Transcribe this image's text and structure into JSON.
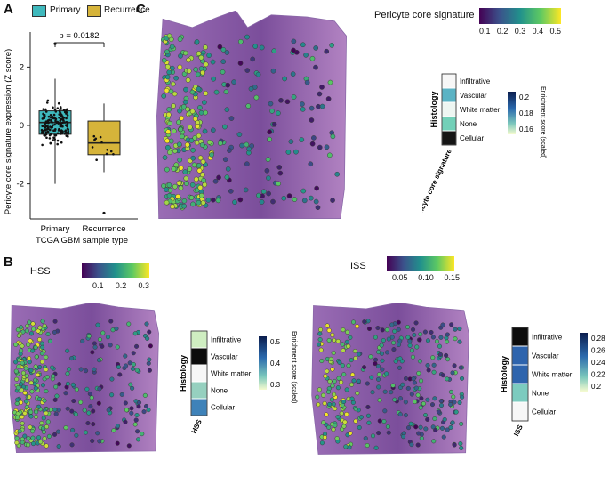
{
  "panels": {
    "A": "A",
    "B": "B",
    "C": "C"
  },
  "panel_a": {
    "legend_primary": "Primary",
    "legend_recurrence": "Recurrence",
    "p_value_label": "p = 0.0182",
    "ylabel": "Pericyte core signature expression (Z score)",
    "xlabel": "TCGA GBM sample type",
    "colors": {
      "primary": "#3fb9bd",
      "recurrence": "#d6b43a"
    }
  },
  "panel_c": {
    "colorbar_title": "Pericyte core signature",
    "colorbar_ticks": [
      "0.1",
      "0.2",
      "0.3",
      "0.4",
      "0.5"
    ],
    "heatmap_column_label": "Pericyte core signature",
    "heatmap_row_title": "Histology",
    "heatmap_rows": [
      "Infiltrative",
      "Vascular",
      "White matter",
      "None",
      "Cellular"
    ],
    "heatmap_colors": [
      "#f7f7f7",
      "#5bb3c4",
      "#eef6f2",
      "#72d0b8",
      "#151515"
    ],
    "enrichment_title": "Enrichment score (scaled)",
    "enrichment_ticks": [
      "0.2",
      "0.18",
      "0.16"
    ]
  },
  "panel_b_hss": {
    "colorbar_title": "HSS",
    "colorbar_ticks": [
      "0.1",
      "0.2",
      "0.3"
    ],
    "heatmap_column_label": "HSS",
    "heatmap_row_title": "Histology",
    "heatmap_rows": [
      "Infiltrative",
      "Vascular",
      "White matter",
      "None",
      "Cellular"
    ],
    "heatmap_colors": [
      "#cfeec1",
      "#0c0c0c",
      "#f7f7f7",
      "#96d0bf",
      "#3e82b9"
    ],
    "enrichment_title": "Enrichment score (scaled)",
    "enrichment_ticks": [
      "0.5",
      "0.4",
      "0.3"
    ]
  },
  "panel_b_iss": {
    "colorbar_title": "ISS",
    "colorbar_ticks": [
      "0.05",
      "0.10",
      "0.15"
    ],
    "heatmap_column_label": "ISS",
    "heatmap_row_title": "Histology",
    "heatmap_rows": [
      "Infiltrative",
      "Vascular",
      "White matter",
      "None",
      "Cellular"
    ],
    "heatmap_colors": [
      "#0c0c0c",
      "#2e64ad",
      "#2e64ad",
      "#7ccbbf",
      "#f7f7f7"
    ],
    "enrichment_title": "Enrichment score (scaled)",
    "enrichment_ticks": [
      "0.28",
      "0.26",
      "0.24",
      "0.22",
      "0.2"
    ]
  },
  "chart_data": [
    {
      "type": "box",
      "categories": [
        "Primary",
        "Recurrence"
      ],
      "series": [
        {
          "name": "Primary",
          "q1": -0.3,
          "median": 0.1,
          "q3": 0.5,
          "whisker_low": -2.0,
          "whisker_high": 1.6,
          "outliers": [
            2.8
          ]
        },
        {
          "name": "Recurrence",
          "q1": -1.0,
          "median": -0.6,
          "q3": 0.15,
          "whisker_low": -1.6,
          "whisker_high": 0.75,
          "outliers": [
            -3.0
          ]
        }
      ],
      "xlabel": "TCGA GBM sample type",
      "ylabel": "Pericyte core signature expression (Z score)",
      "yticks": [
        -2,
        0,
        2
      ],
      "ylim": [
        -3.2,
        3.2
      ],
      "annotation": "p = 0.0182"
    },
    {
      "type": "heatmap",
      "column": "Pericyte core signature",
      "rows": [
        "Infiltrative",
        "Vascular",
        "White matter",
        "None",
        "Cellular"
      ],
      "values": [
        0.16,
        0.185,
        0.165,
        0.175,
        0.2
      ],
      "color_range": [
        0.15,
        0.21
      ]
    },
    {
      "type": "heatmap",
      "column": "HSS",
      "rows": [
        "Infiltrative",
        "Vascular",
        "White matter",
        "None",
        "Cellular"
      ],
      "values": [
        0.33,
        0.55,
        0.28,
        0.38,
        0.46
      ],
      "color_range": [
        0.25,
        0.56
      ]
    },
    {
      "type": "heatmap",
      "column": "ISS",
      "rows": [
        "Infiltrative",
        "Vascular",
        "White matter",
        "None",
        "Cellular"
      ],
      "values": [
        0.29,
        0.26,
        0.26,
        0.22,
        0.2
      ],
      "color_range": [
        0.19,
        0.29
      ]
    }
  ]
}
